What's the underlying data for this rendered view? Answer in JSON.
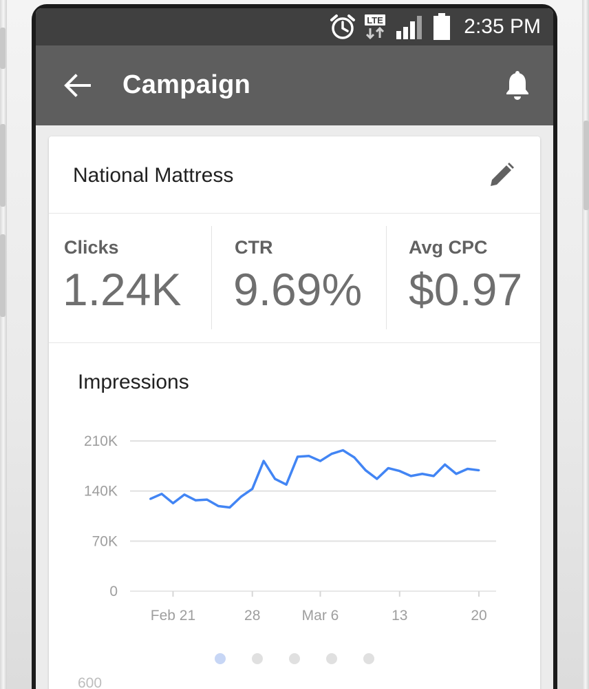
{
  "status_bar": {
    "time": "2:35 PM",
    "network_label": "LTE",
    "icons": [
      "alarm-icon",
      "lte-icon",
      "signal-icon",
      "battery-icon"
    ]
  },
  "app_bar": {
    "title": "Campaign",
    "icons": [
      "arrow-back-icon",
      "bell-icon"
    ]
  },
  "campaign": {
    "name": "National Mattress",
    "edit_icon": "pencil-icon"
  },
  "metrics": [
    {
      "label": "Clicks",
      "value": "1.24K"
    },
    {
      "label": "CTR",
      "value": "9.69%"
    },
    {
      "label": "Avg CPC",
      "value": "$0.97"
    }
  ],
  "chart": {
    "title": "Impressions"
  },
  "pager": {
    "count": 5,
    "active_index": 0
  },
  "next_chart": {
    "first_tick": "600"
  },
  "colors": {
    "line": "#4285f4",
    "app_bar": "#5e5e5e",
    "status_bar": "#404040",
    "grid": "#e0e0e0"
  },
  "chart_data": {
    "type": "line",
    "title": "Impressions",
    "xlabel": "",
    "ylabel": "",
    "x": [
      "Feb 19",
      "Feb 20",
      "Feb 21",
      "Feb 22",
      "Feb 23",
      "Feb 24",
      "Feb 25",
      "Feb 26",
      "Feb 27",
      "Feb 28",
      "Mar 1",
      "Mar 2",
      "Mar 3",
      "Mar 4",
      "Mar 5",
      "Mar 6",
      "Mar 7",
      "Mar 8",
      "Mar 9",
      "Mar 10",
      "Mar 11",
      "Mar 12",
      "Mar 13",
      "Mar 14",
      "Mar 15",
      "Mar 16",
      "Mar 17",
      "Mar 18",
      "Mar 19",
      "Mar 20"
    ],
    "x_ticks": [
      "Feb 21",
      "28",
      "Mar 6",
      "13",
      "20"
    ],
    "x_tick_positions": [
      "Feb 21",
      "Feb 28",
      "Mar 6",
      "Mar 13",
      "Mar 20"
    ],
    "y_ticks": [
      "0",
      "70K",
      "140K",
      "210K"
    ],
    "y_tick_values": [
      0,
      70000,
      140000,
      210000
    ],
    "ylim": [
      0,
      210000
    ],
    "grid": true,
    "series": [
      {
        "values": [
          129000,
          136000,
          123000,
          135000,
          127000,
          128000,
          119000,
          117000,
          132000,
          143000,
          182000,
          157000,
          149000,
          188000,
          189000,
          182000,
          192000,
          197000,
          187000,
          169000,
          157000,
          172000,
          168000,
          161000,
          164000,
          161000,
          177000,
          164000,
          171000,
          169000
        ]
      }
    ]
  }
}
